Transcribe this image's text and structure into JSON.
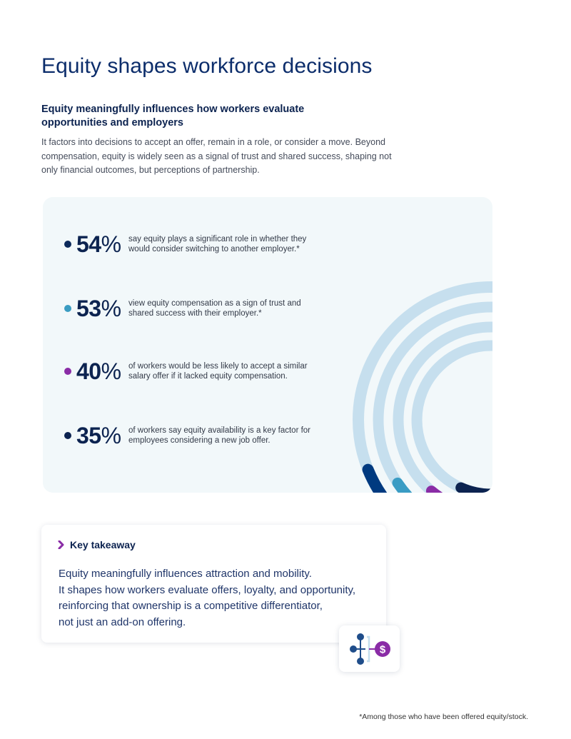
{
  "page": {
    "title": "Equity shapes workforce decisions",
    "subtitle": "Equity meaningfully influences how workers evaluate opportunities and employers",
    "intro": "It factors into decisions to accept an offer, remain in a role, or consider a move. Beyond compensation, equity is widely seen as a signal of trust and shared success, shaping not only financial outcomes, but perceptions of partnership."
  },
  "stats": [
    {
      "value": "54",
      "unit": "%",
      "text": "say equity plays a significant role in whether they would consider switching to another employer.*",
      "color": "#0c2a5b"
    },
    {
      "value": "53",
      "unit": "%",
      "text": "view equity compensation as a sign of trust and shared success with their employer.*",
      "color": "#3a9cc2"
    },
    {
      "value": "40",
      "unit": "%",
      "text": "of workers would be less likely to accept a similar salary offer if it lacked equity compensation.",
      "color": "#8a2ca6"
    },
    {
      "value": "35",
      "unit": "%",
      "text": "of workers say equity availability is a key factor for employees considering a new job offer.",
      "color": "#0c2350"
    }
  ],
  "rings": {
    "track_color": "#c6dfee",
    "arcs": [
      {
        "label": "54%",
        "fraction": 0.54,
        "color": "#003a80"
      },
      {
        "label": "53%",
        "fraction": 0.53,
        "color": "#3a9cc4"
      },
      {
        "label": "40%",
        "fraction": 0.4,
        "color": "#8a2ca6"
      },
      {
        "label": "35%",
        "fraction": 0.35,
        "color": "#0c2350"
      }
    ]
  },
  "takeaway": {
    "label": "Key takeaway",
    "lines": [
      "Equity meaningfully influences attraction and mobility.",
      "It shapes how workers evaluate offers, loyalty, and opportunity,",
      "reinforcing that ownership is a competitive differentiator,",
      "not just an add-on offering."
    ],
    "chevron_color": "#8a2ca6"
  },
  "icons": {
    "takeaway_icon": "equity-network-dollar-icon",
    "chevron": "chevron-right-icon"
  },
  "footnote": "*Among those who have been offered equity/stock."
}
